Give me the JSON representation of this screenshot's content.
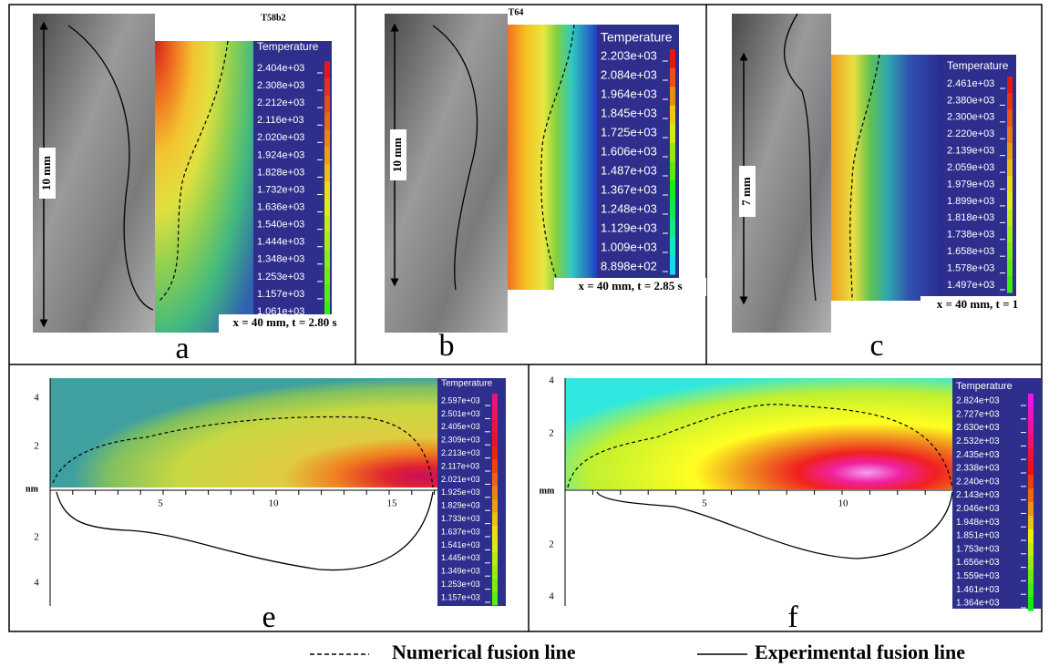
{
  "panels": [
    {
      "letter": "a",
      "title": "T58b2",
      "scale_label": "10 mm",
      "time_label": "x = 40 mm, t = 2.80 s",
      "colorbar": {
        "title": "Temperature",
        "ticks": [
          "2.404e+03",
          "2.308e+03",
          "2.212e+03",
          "2.116e+03",
          "2.020e+03",
          "1.924e+03",
          "1.828e+03",
          "1.732e+03",
          "1.636e+03",
          "1.540e+03",
          "1.444e+03",
          "1.348e+03",
          "1.253e+03",
          "1.157e+03",
          "1.061e+03"
        ]
      }
    },
    {
      "letter": "b",
      "title": "T64",
      "scale_label": "10 mm",
      "time_label": "x = 40 mm, t = 2.85 s",
      "colorbar": {
        "title": "Temperature",
        "ticks": [
          "2.203e+03",
          "2.084e+03",
          "1.964e+03",
          "1.845e+03",
          "1.725e+03",
          "1.606e+03",
          "1.487e+03",
          "1.367e+03",
          "1.248e+03",
          "1.129e+03",
          "1.009e+03",
          "8.898e+02"
        ]
      }
    },
    {
      "letter": "c",
      "scale_label": "7 mm",
      "time_label": "x = 40 mm, t = 1",
      "colorbar": {
        "title": "Temperature",
        "ticks": [
          "2.461e+03",
          "2.380e+03",
          "2.300e+03",
          "2.220e+03",
          "2.139e+03",
          "2.059e+03",
          "1.979e+03",
          "1.899e+03",
          "1.818e+03",
          "1.738e+03",
          "1.658e+03",
          "1.578e+03",
          "1.497e+03"
        ]
      }
    }
  ],
  "lower_panels": [
    {
      "letter": "e",
      "unit": "nm",
      "x_ticks": [
        "5",
        "10",
        "15"
      ],
      "y_ticks_upper": [
        "4",
        "2"
      ],
      "y_ticks_lower": [
        "2",
        "4"
      ],
      "colorbar": {
        "title": "Temperature",
        "ticks": [
          "2.597e+03",
          "2.501e+03",
          "2.405e+03",
          "2.309e+03",
          "2.213e+03",
          "2.117e+03",
          "2.021e+03",
          "1.925e+03",
          "1.829e+03",
          "1.733e+03",
          "1.637e+03",
          "1.541e+03",
          "1.445e+03",
          "1.349e+03",
          "1.253e+03",
          "1.157e+03"
        ]
      }
    },
    {
      "letter": "f",
      "unit": "mm",
      "x_ticks": [
        "5",
        "10"
      ],
      "y_ticks_upper": [
        "4",
        "2"
      ],
      "y_ticks_lower": [
        "2",
        "4"
      ],
      "colorbar": {
        "title": "Temperature",
        "ticks": [
          "2.824e+03",
          "2.727e+03",
          "2.630e+03",
          "2.532e+03",
          "2.435e+03",
          "2.338e+03",
          "2.240e+03",
          "2.143e+03",
          "2.046e+03",
          "1.948e+03",
          "1.851e+03",
          "1.753e+03",
          "1.656e+03",
          "1.559e+03",
          "1.461e+03",
          "1.364e+03"
        ]
      }
    }
  ],
  "legend": {
    "numerical": "Numerical fusion line",
    "experimental": "Experimental fusion line"
  }
}
